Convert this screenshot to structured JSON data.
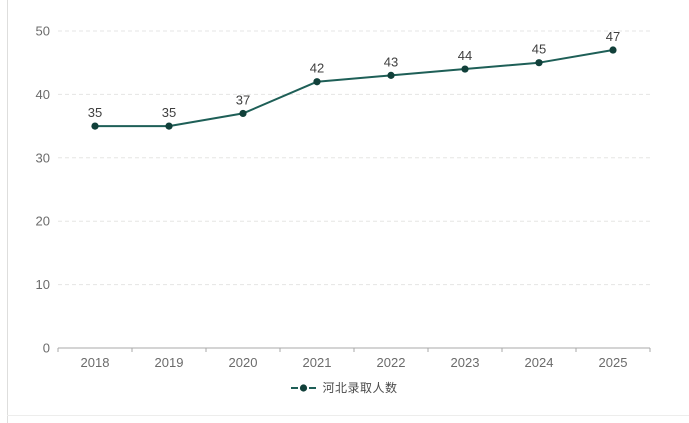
{
  "chart_data": {
    "type": "line",
    "title": "",
    "xlabel": "",
    "ylabel": "",
    "categories": [
      "2018",
      "2019",
      "2020",
      "2021",
      "2022",
      "2023",
      "2024",
      "2025"
    ],
    "series": [
      {
        "name": "河北录取人数",
        "values": [
          35,
          35,
          37,
          42,
          43,
          44,
          45,
          47
        ]
      }
    ],
    "data_labels": [
      "35",
      "35",
      "37",
      "42",
      "43",
      "44",
      "45",
      "47"
    ],
    "ylim": [
      0,
      50
    ],
    "ytick_step": 10,
    "yticks": [
      "0",
      "10",
      "20",
      "30",
      "40",
      "50"
    ],
    "grid": "horizontal-dashed",
    "legend_position": "bottom",
    "legend_marker": "line-dot-line",
    "colors": {
      "line": "#1e5f57",
      "marker": "#11403a",
      "data_label": "#3f3f3f",
      "axis_tick_label": "#6b6b6b",
      "axis_line": "#a8a8a8",
      "gridline": "#e5e5e4",
      "legend_text": "#4a4a4a",
      "background": "#ffffff"
    }
  }
}
